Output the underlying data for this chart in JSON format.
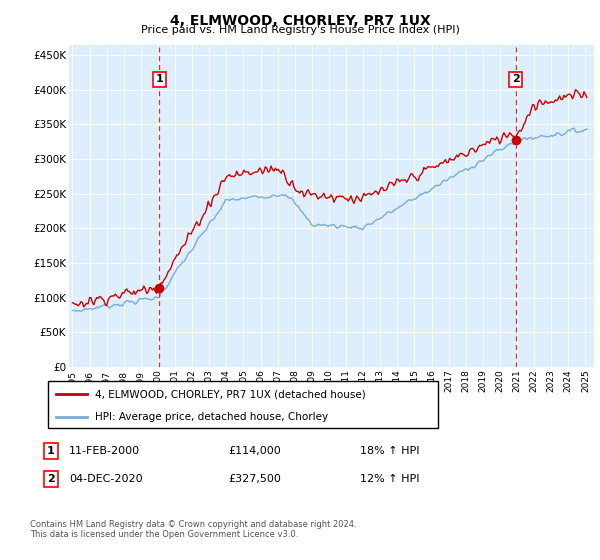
{
  "title": "4, ELMWOOD, CHORLEY, PR7 1UX",
  "subtitle": "Price paid vs. HM Land Registry's House Price Index (HPI)",
  "ylabel_ticks": [
    "£0",
    "£50K",
    "£100K",
    "£150K",
    "£200K",
    "£250K",
    "£300K",
    "£350K",
    "£400K",
    "£450K"
  ],
  "ytick_values": [
    0,
    50000,
    100000,
    150000,
    200000,
    250000,
    300000,
    350000,
    400000,
    450000
  ],
  "ylim": [
    0,
    465000
  ],
  "xlim_start": 1994.8,
  "xlim_end": 2025.5,
  "red_line_color": "#cc0000",
  "blue_line_color": "#7aabdb",
  "dashed_red_color": "#cc0000",
  "bg_color": "#ddeeff",
  "marker1_x": 2000.08,
  "marker1_y": 114000,
  "marker2_x": 2020.92,
  "marker2_y": 327500,
  "annotation1_label": "1",
  "annotation2_label": "2",
  "legend_label_red": "4, ELMWOOD, CHORLEY, PR7 1UX (detached house)",
  "legend_label_blue": "HPI: Average price, detached house, Chorley",
  "table_row1": [
    "1",
    "11-FEB-2000",
    "£114,000",
    "18% ↑ HPI"
  ],
  "table_row2": [
    "2",
    "04-DEC-2020",
    "£327,500",
    "12% ↑ HPI"
  ],
  "footer": "Contains HM Land Registry data © Crown copyright and database right 2024.\nThis data is licensed under the Open Government Licence v3.0.",
  "xtick_years": [
    1995,
    1996,
    1997,
    1998,
    1999,
    2000,
    2001,
    2002,
    2003,
    2004,
    2005,
    2006,
    2007,
    2008,
    2009,
    2010,
    2011,
    2012,
    2013,
    2014,
    2015,
    2016,
    2017,
    2018,
    2019,
    2020,
    2021,
    2022,
    2023,
    2024,
    2025
  ]
}
